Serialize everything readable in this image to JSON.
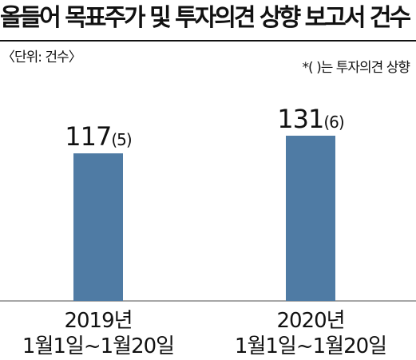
{
  "header": {
    "title": "올들어 목표주가 및 투자의견 상향 보고서 건수",
    "unit": "〈단위: 건수〉",
    "note": "*(  )는 투자의견 상향"
  },
  "chart_data": {
    "type": "bar",
    "title": "올들어 목표주가 및 투자의견 상향 보고서 건수",
    "categories": [
      "2019년 1월1일~1월20일",
      "2020년 1월1일~1월20일"
    ],
    "category_lines": [
      [
        "2019년",
        "1월1일~1월20일"
      ],
      [
        "2020년",
        "1월1일~1월20일"
      ]
    ],
    "series": [
      {
        "values": [
          117,
          131
        ],
        "paren_values": [
          5,
          6
        ],
        "value_labels": [
          "117",
          "131"
        ],
        "paren_labels": [
          "(5)",
          "(6)"
        ]
      }
    ],
    "bar_color": "#4f7ba4",
    "axis_color": "#888888",
    "ylim": [
      0,
      131
    ],
    "grid": false,
    "legend": "none"
  }
}
